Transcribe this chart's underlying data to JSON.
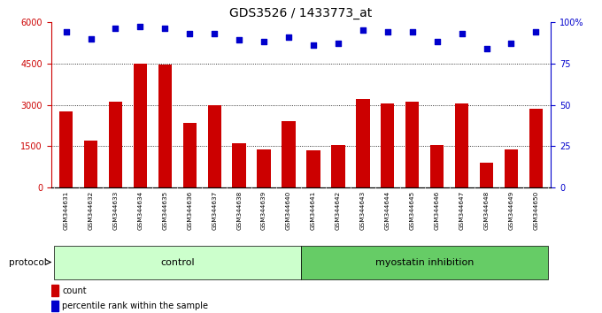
{
  "title": "GDS3526 / 1433773_at",
  "samples": [
    "GSM344631",
    "GSM344632",
    "GSM344633",
    "GSM344634",
    "GSM344635",
    "GSM344636",
    "GSM344637",
    "GSM344638",
    "GSM344639",
    "GSM344640",
    "GSM344641",
    "GSM344642",
    "GSM344643",
    "GSM344644",
    "GSM344645",
    "GSM344646",
    "GSM344647",
    "GSM344648",
    "GSM344649",
    "GSM344650"
  ],
  "counts": [
    2750,
    1700,
    3100,
    4500,
    4450,
    2350,
    3000,
    1600,
    1400,
    2400,
    1350,
    1550,
    3200,
    3050,
    3100,
    1550,
    3050,
    900,
    1400,
    2850
  ],
  "percentile": [
    94,
    90,
    96,
    97,
    96,
    93,
    93,
    89,
    88,
    91,
    86,
    87,
    95,
    94,
    94,
    88,
    93,
    84,
    87,
    94
  ],
  "control_count": 10,
  "bar_color": "#cc0000",
  "dot_color": "#0000cc",
  "control_color": "#ccffcc",
  "myostatin_color": "#66cc66",
  "xtick_bg_color": "#c8c8c8",
  "ylim_left": [
    0,
    6000
  ],
  "ylim_right": [
    0,
    100
  ],
  "yticks_left": [
    0,
    1500,
    3000,
    4500,
    6000
  ],
  "yticks_right": [
    0,
    25,
    50,
    75,
    100
  ],
  "grid_values": [
    1500,
    3000,
    4500
  ],
  "title_fontsize": 10,
  "label_count": "count",
  "label_percentile": "percentile rank within the sample"
}
